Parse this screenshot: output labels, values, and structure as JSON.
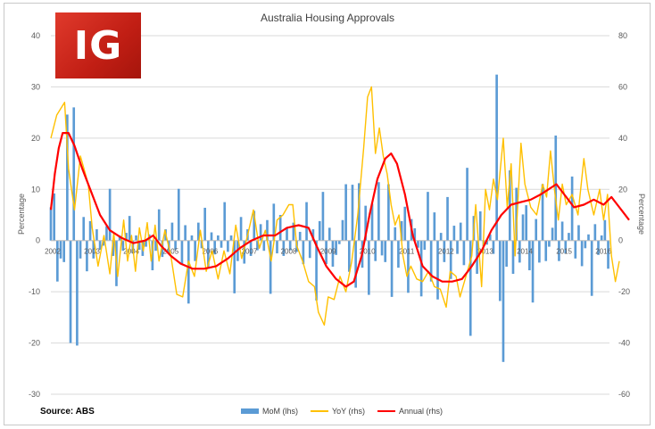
{
  "chart_data": {
    "type": "bar+line",
    "title": "Australia Housing Approvals",
    "source": "Source: ABS",
    "ylabel_left": "Percentage",
    "ylabel_right": "Percentage",
    "ylim_left": [
      -30,
      40
    ],
    "ylim_right": [
      -60,
      80
    ],
    "yticks_left": [
      "40",
      "30",
      "20",
      "10",
      "0",
      "-10",
      "-20",
      "-30"
    ],
    "yticks_right": [
      "80",
      "60",
      "40",
      "20",
      "0",
      "-20",
      "-40",
      "-60"
    ],
    "x_range": [
      2002.0,
      2016.2
    ],
    "x_tick_labels": [
      "2002",
      "2003",
      "2004",
      "2005",
      "2006",
      "2007",
      "2008",
      "2009",
      "2010",
      "2011",
      "2012",
      "2013",
      "2014",
      "2015",
      "2016"
    ],
    "grid": true,
    "legend_position": "bottom",
    "colors": {
      "mom": "#5b9bd5",
      "yoy": "#ffc000",
      "annual": "#ff0000",
      "grid": "#d9d9d9"
    },
    "series": [
      {
        "name": "MoM (lhs)",
        "axis": "left",
        "kind": "bar",
        "start": 2002.0,
        "step_months": 1,
        "values": [
          6.5,
          9.2,
          -8.0,
          -3.5,
          -4.2,
          24.6,
          -20.0,
          26.0,
          -20.5,
          -3.5,
          4.6,
          -6.0,
          3.8,
          -3.5,
          2.2,
          -1.8,
          -1.0,
          2.8,
          10.1,
          -3.0,
          -8.9,
          1.0,
          -2.0,
          1.5,
          4.8,
          -2.5,
          1.0,
          -1.8,
          -3.0,
          -1.2,
          1.2,
          -5.8,
          -2.0,
          6.1,
          -3.2,
          2.2,
          -2.5,
          3.5,
          -1.8,
          10.1,
          -4.5,
          3.0,
          -12.3,
          1.0,
          -4.0,
          3.5,
          -1.5,
          6.4,
          -5.5,
          1.6,
          -2.7,
          1.0,
          -1.4,
          7.5,
          -2.2,
          1.0,
          -10.3,
          -4.0,
          4.6,
          -4.5,
          2.2,
          -3.0,
          5.8,
          -1.9,
          3.2,
          -2.0,
          4.0,
          -10.4,
          7.2,
          -2.5,
          5.0,
          -3.0,
          2.5,
          -1.9,
          3.5,
          -2.2,
          1.7,
          -4.6,
          7.5,
          -3.4,
          2.2,
          -11.7,
          3.8,
          9.5,
          -4.6,
          2.5,
          -5.1,
          -2.8,
          -0.7,
          4.0,
          11.0,
          -6.1,
          10.9,
          -9.2,
          11.2,
          -5.3,
          6.8,
          -10.6,
          7.2,
          -4.0,
          11.4,
          -2.9,
          -4.2,
          11.0,
          -11.0,
          2.6,
          -5.3,
          3.8,
          6.6,
          -10.2,
          4.2,
          2.4,
          -1.4,
          -10.9,
          -1.8,
          9.5,
          -8.0,
          5.5,
          -11.5,
          1.5,
          -4.2,
          8.5,
          -7.5,
          2.9,
          -2.6,
          3.5,
          -4.8,
          14.2,
          -18.6,
          4.8,
          -6.5,
          5.7,
          -1.1,
          -0.8,
          1.2,
          -2.6,
          32.4,
          -11.8,
          -23.7,
          -5.1,
          13.7,
          -6.5,
          10.3,
          -4.3,
          5.1,
          6.9,
          -5.8,
          -12.1,
          4.2,
          -4.3,
          11.0,
          -4.0,
          -1.2,
          2.5,
          20.5,
          -4.0,
          3.7,
          -2.5,
          1.5,
          12.5,
          -3.5,
          3.0,
          -5.0,
          -1.5,
          1.2,
          -10.8,
          3.2,
          -2.8,
          1.0,
          4.0,
          -5.5,
          5.0,
          -12.2,
          4.5,
          -3.0,
          2.2,
          10.7,
          -4.0,
          8.5,
          2.0,
          -3.0,
          -4.1,
          5.2,
          -3.0,
          1.2,
          -6.0,
          5.0,
          -9.8,
          5.2,
          -3.0,
          2.0,
          -13.5,
          8.6,
          -5.0,
          3.4
        ]
      },
      {
        "name": "YoY (rhs)",
        "axis": "right",
        "kind": "line",
        "points": [
          [
            2002.0,
            40.0
          ],
          [
            2002.15,
            49.0
          ],
          [
            2002.35,
            54.0
          ],
          [
            2002.45,
            28.0
          ],
          [
            2002.6,
            12.0
          ],
          [
            2002.75,
            33.0
          ],
          [
            2002.95,
            22.0
          ],
          [
            2003.05,
            5.0
          ],
          [
            2003.2,
            -10.0
          ],
          [
            2003.35,
            2.0
          ],
          [
            2003.5,
            -13.0
          ],
          [
            2003.6,
            3.0
          ],
          [
            2003.7,
            -14.0
          ],
          [
            2003.85,
            8.0
          ],
          [
            2003.95,
            -8.0
          ],
          [
            2004.05,
            2.0
          ],
          [
            2004.15,
            -12.0
          ],
          [
            2004.25,
            5.0
          ],
          [
            2004.35,
            -4.0
          ],
          [
            2004.45,
            7.0
          ],
          [
            2004.55,
            -8.0
          ],
          [
            2004.65,
            6.0
          ],
          [
            2004.75,
            -8.0
          ],
          [
            2004.9,
            4.0
          ],
          [
            2005.05,
            -6.0
          ],
          [
            2005.2,
            -21.0
          ],
          [
            2005.35,
            -22.0
          ],
          [
            2005.5,
            -8.0
          ],
          [
            2005.65,
            -14.0
          ],
          [
            2005.8,
            4.0
          ],
          [
            2005.95,
            -12.0
          ],
          [
            2006.1,
            -4.0
          ],
          [
            2006.25,
            -15.0
          ],
          [
            2006.4,
            -4.0
          ],
          [
            2006.55,
            -13.0
          ],
          [
            2006.7,
            6.0
          ],
          [
            2006.85,
            -7.0
          ],
          [
            2007.0,
            2.0
          ],
          [
            2007.15,
            12.0
          ],
          [
            2007.3,
            -3.0
          ],
          [
            2007.45,
            4.0
          ],
          [
            2007.6,
            -8.0
          ],
          [
            2007.75,
            8.0
          ],
          [
            2007.9,
            10.0
          ],
          [
            2008.05,
            14.0
          ],
          [
            2008.15,
            14.0
          ],
          [
            2008.25,
            -2.0
          ],
          [
            2008.4,
            -8.0
          ],
          [
            2008.55,
            -16.0
          ],
          [
            2008.7,
            -18.0
          ],
          [
            2008.8,
            -28.0
          ],
          [
            2008.95,
            -33.0
          ],
          [
            2009.05,
            -22.0
          ],
          [
            2009.2,
            -23.0
          ],
          [
            2009.35,
            -14.0
          ],
          [
            2009.5,
            -20.0
          ],
          [
            2009.65,
            -8.0
          ],
          [
            2009.8,
            10.0
          ],
          [
            2009.95,
            36.0
          ],
          [
            2010.05,
            56.0
          ],
          [
            2010.15,
            60.0
          ],
          [
            2010.25,
            34.0
          ],
          [
            2010.35,
            44.0
          ],
          [
            2010.45,
            33.0
          ],
          [
            2010.55,
            26.0
          ],
          [
            2010.65,
            14.0
          ],
          [
            2010.75,
            6.0
          ],
          [
            2010.85,
            10.0
          ],
          [
            2010.95,
            -6.0
          ],
          [
            2011.05,
            -14.0
          ],
          [
            2011.15,
            -10.0
          ],
          [
            2011.3,
            -15.0
          ],
          [
            2011.45,
            -16.0
          ],
          [
            2011.6,
            -12.0
          ],
          [
            2011.75,
            -18.0
          ],
          [
            2011.9,
            -19.0
          ],
          [
            2012.05,
            -26.0
          ],
          [
            2012.15,
            -12.0
          ],
          [
            2012.3,
            -14.0
          ],
          [
            2012.4,
            -22.0
          ],
          [
            2012.55,
            -14.0
          ],
          [
            2012.7,
            -6.0
          ],
          [
            2012.8,
            14.0
          ],
          [
            2012.95,
            -18.0
          ],
          [
            2013.05,
            20.0
          ],
          [
            2013.15,
            12.0
          ],
          [
            2013.25,
            24.0
          ],
          [
            2013.35,
            16.0
          ],
          [
            2013.5,
            40.0
          ],
          [
            2013.6,
            13.0
          ],
          [
            2013.7,
            30.0
          ],
          [
            2013.8,
            -6.0
          ],
          [
            2013.95,
            38.0
          ],
          [
            2014.05,
            22.0
          ],
          [
            2014.2,
            13.0
          ],
          [
            2014.35,
            10.0
          ],
          [
            2014.5,
            22.0
          ],
          [
            2014.6,
            17.0
          ],
          [
            2014.7,
            35.0
          ],
          [
            2014.8,
            20.0
          ],
          [
            2014.9,
            8.0
          ],
          [
            2015.0,
            22.0
          ],
          [
            2015.1,
            14.0
          ],
          [
            2015.25,
            18.0
          ],
          [
            2015.4,
            10.0
          ],
          [
            2015.55,
            32.0
          ],
          [
            2015.65,
            20.0
          ],
          [
            2015.8,
            10.0
          ],
          [
            2015.95,
            20.0
          ],
          [
            2016.05,
            8.0
          ],
          [
            2016.15,
            18.0
          ],
          [
            2016.25,
            -6.0
          ],
          [
            2016.35,
            -16.0
          ],
          [
            2016.45,
            -8.0
          ]
        ]
      },
      {
        "name": "Annual (rhs)",
        "axis": "right",
        "kind": "line",
        "points": [
          [
            2002.0,
            12.0
          ],
          [
            2002.1,
            26.0
          ],
          [
            2002.2,
            36.0
          ],
          [
            2002.3,
            42.0
          ],
          [
            2002.45,
            42.0
          ],
          [
            2002.6,
            37.0
          ],
          [
            2002.8,
            28.0
          ],
          [
            2003.0,
            20.0
          ],
          [
            2003.25,
            10.0
          ],
          [
            2003.5,
            4.0
          ],
          [
            2003.8,
            1.0
          ],
          [
            2004.1,
            -1.0
          ],
          [
            2004.4,
            0.0
          ],
          [
            2004.6,
            2.0
          ],
          [
            2004.8,
            -2.0
          ],
          [
            2005.05,
            -6.0
          ],
          [
            2005.3,
            -9.0
          ],
          [
            2005.6,
            -11.0
          ],
          [
            2005.9,
            -11.0
          ],
          [
            2006.2,
            -10.0
          ],
          [
            2006.5,
            -7.0
          ],
          [
            2006.8,
            -3.0
          ],
          [
            2007.1,
            0.0
          ],
          [
            2007.4,
            2.0
          ],
          [
            2007.7,
            2.0
          ],
          [
            2008.0,
            5.0
          ],
          [
            2008.3,
            6.0
          ],
          [
            2008.55,
            5.0
          ],
          [
            2008.75,
            -2.0
          ],
          [
            2009.0,
            -10.0
          ],
          [
            2009.25,
            -15.0
          ],
          [
            2009.5,
            -18.0
          ],
          [
            2009.7,
            -16.0
          ],
          [
            2009.9,
            -6.0
          ],
          [
            2010.1,
            10.0
          ],
          [
            2010.3,
            24.0
          ],
          [
            2010.5,
            32.0
          ],
          [
            2010.65,
            34.0
          ],
          [
            2010.8,
            30.0
          ],
          [
            2011.0,
            18.0
          ],
          [
            2011.2,
            2.0
          ],
          [
            2011.45,
            -10.0
          ],
          [
            2011.7,
            -14.0
          ],
          [
            2011.95,
            -16.0
          ],
          [
            2012.2,
            -16.0
          ],
          [
            2012.45,
            -15.0
          ],
          [
            2012.7,
            -10.0
          ],
          [
            2012.95,
            -4.0
          ],
          [
            2013.2,
            4.0
          ],
          [
            2013.45,
            10.0
          ],
          [
            2013.7,
            14.0
          ],
          [
            2013.95,
            15.0
          ],
          [
            2014.2,
            16.0
          ],
          [
            2014.45,
            18.0
          ],
          [
            2014.65,
            20.0
          ],
          [
            2014.85,
            22.0
          ],
          [
            2015.05,
            18.0
          ],
          [
            2015.3,
            13.0
          ],
          [
            2015.55,
            14.0
          ],
          [
            2015.8,
            16.0
          ],
          [
            2016.05,
            14.0
          ],
          [
            2016.25,
            17.0
          ],
          [
            2016.4,
            14.0
          ],
          [
            2016.55,
            11.0
          ],
          [
            2016.7,
            8.0
          ]
        ]
      }
    ]
  }
}
